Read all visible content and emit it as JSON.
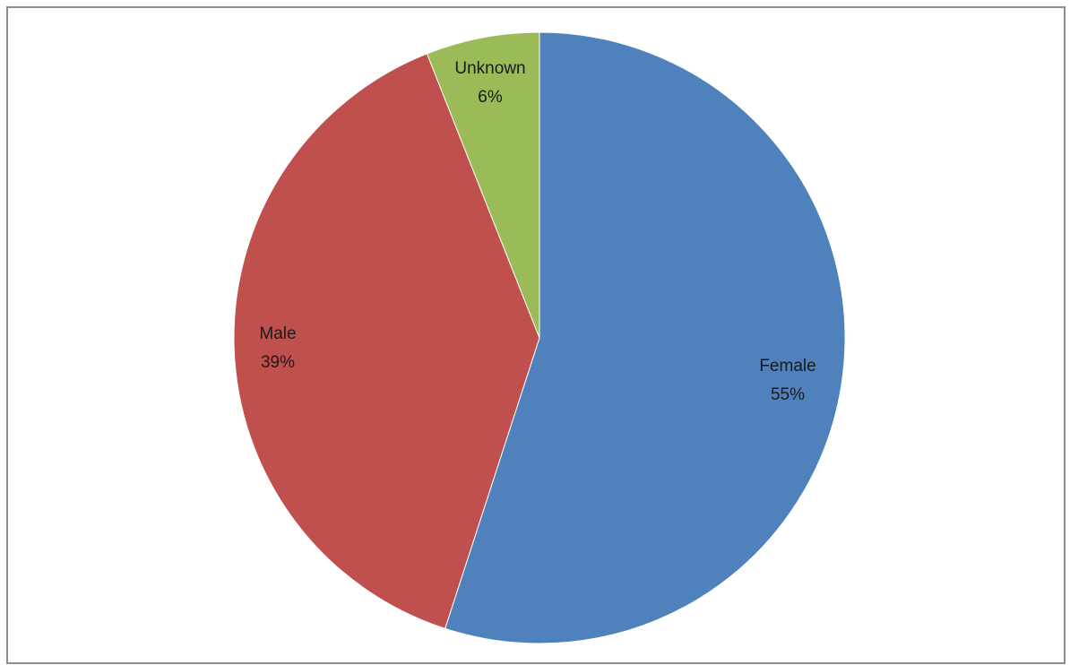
{
  "chart_data": {
    "type": "pie",
    "title": "",
    "slices": [
      {
        "label": "Female",
        "value": 55,
        "percent_text": "55%",
        "color": "#4f81bd"
      },
      {
        "label": "Male",
        "value": 39,
        "percent_text": "39%",
        "color": "#c0504d"
      },
      {
        "label": "Unknown",
        "value": 6,
        "percent_text": "6%",
        "color": "#9bbb59"
      }
    ],
    "start_angle": "12 o'clock",
    "direction": "clockwise",
    "legend": "none",
    "data_labels": "category name and percentage"
  }
}
